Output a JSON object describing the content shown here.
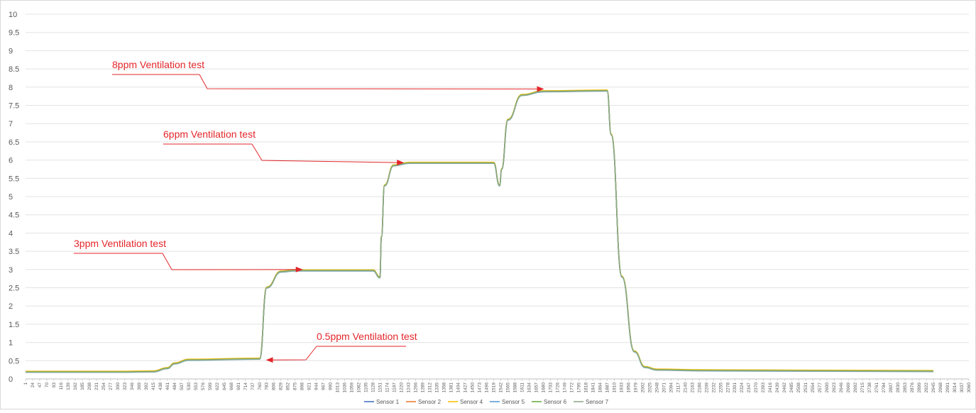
{
  "chart_data": {
    "type": "line",
    "title": "",
    "xlabel": "",
    "ylabel": "",
    "ylim": [
      0,
      10
    ],
    "xlim": [
      1,
      3060
    ],
    "y_ticks": [
      "0",
      "0.5",
      "1",
      "1.5",
      "2",
      "2.5",
      "3",
      "3.5",
      "4",
      "4.5",
      "5",
      "5.5",
      "6",
      "6.5",
      "7",
      "7.5",
      "8",
      "8.5",
      "9",
      "9.5",
      "10"
    ],
    "x_ticks": [
      "1",
      "24",
      "47",
      "70",
      "93",
      "116",
      "139",
      "162",
      "185",
      "208",
      "231",
      "254",
      "277",
      "300",
      "323",
      "346",
      "369",
      "392",
      "415",
      "438",
      "461",
      "484",
      "507",
      "530",
      "553",
      "576",
      "599",
      "622",
      "645",
      "668",
      "691",
      "714",
      "737",
      "760",
      "783",
      "806",
      "829",
      "852",
      "875",
      "898",
      "921",
      "944",
      "967",
      "990",
      "1013",
      "1036",
      "1059",
      "1082",
      "1105",
      "1128",
      "1151",
      "1174",
      "1197",
      "1220",
      "1243",
      "1266",
      "1289",
      "1312",
      "1335",
      "1358",
      "1381",
      "1404",
      "1427",
      "1450",
      "1473",
      "1496",
      "1519",
      "1542",
      "1565",
      "1588",
      "1611",
      "1634",
      "1657",
      "1680",
      "1703",
      "1726",
      "1749",
      "1772",
      "1795",
      "1818",
      "1841",
      "1864",
      "1887",
      "1910",
      "1933",
      "1956",
      "1979",
      "2002",
      "2025",
      "2048",
      "2071",
      "2094",
      "2117",
      "2140",
      "2163",
      "2186",
      "2209",
      "2232",
      "2255",
      "2278",
      "2301",
      "2324",
      "2347",
      "2370",
      "2393",
      "2416",
      "2439",
      "2462",
      "2485",
      "2508",
      "2531",
      "2554",
      "2577",
      "2600",
      "2623",
      "2646",
      "2669",
      "2692",
      "2715",
      "2738",
      "2761",
      "2784",
      "2807",
      "2830",
      "2853",
      "2876",
      "2899",
      "2922",
      "2945",
      "2968",
      "2991",
      "3014",
      "3037",
      "3060"
    ],
    "x": [
      1,
      300,
      415,
      461,
      484,
      530,
      760,
      783,
      830,
      875,
      1128,
      1150,
      1155,
      1165,
      1195,
      1245,
      1519,
      1538,
      1545,
      1565,
      1611,
      1680,
      1887,
      1900,
      1935,
      1975,
      2010,
      2048,
      2200,
      2945
    ],
    "series": [
      {
        "name": "Sensor 1",
        "color": "#4472c4",
        "values": [
          0.19,
          0.19,
          0.2,
          0.29,
          0.42,
          0.52,
          0.55,
          2.5,
          2.94,
          2.97,
          2.97,
          2.78,
          3.9,
          5.3,
          5.85,
          5.92,
          5.92,
          5.3,
          5.75,
          7.1,
          7.78,
          7.88,
          7.9,
          6.7,
          2.8,
          0.75,
          0.32,
          0.25,
          0.23,
          0.21
        ],
        "offset": 0.0
      },
      {
        "name": "Sensor 2",
        "color": "#ed7d31",
        "values": [
          0.19,
          0.19,
          0.2,
          0.29,
          0.42,
          0.52,
          0.55,
          2.5,
          2.94,
          2.97,
          2.97,
          2.78,
          3.9,
          5.3,
          5.85,
          5.92,
          5.92,
          5.3,
          5.75,
          7.1,
          7.78,
          7.88,
          7.9,
          6.7,
          2.8,
          0.75,
          0.32,
          0.25,
          0.23,
          0.21
        ],
        "offset": 0.015
      },
      {
        "name": "Sensor 4",
        "color": "#ffc000",
        "values": [
          0.19,
          0.19,
          0.2,
          0.29,
          0.42,
          0.52,
          0.55,
          2.5,
          2.94,
          2.97,
          2.97,
          2.78,
          3.9,
          5.3,
          5.85,
          5.92,
          5.92,
          5.3,
          5.75,
          7.1,
          7.78,
          7.88,
          7.9,
          6.7,
          2.8,
          0.75,
          0.32,
          0.25,
          0.23,
          0.21
        ],
        "offset": 0.02
      },
      {
        "name": "Sensor 5",
        "color": "#5b9bd5",
        "values": [
          0.19,
          0.19,
          0.2,
          0.29,
          0.42,
          0.52,
          0.55,
          2.5,
          2.94,
          2.97,
          2.97,
          2.78,
          3.9,
          5.3,
          5.85,
          5.92,
          5.92,
          5.3,
          5.75,
          7.1,
          7.78,
          7.88,
          7.9,
          6.7,
          2.8,
          0.75,
          0.32,
          0.25,
          0.23,
          0.21
        ],
        "offset": -0.01
      },
      {
        "name": "Sensor 6",
        "color": "#70ad47",
        "values": [
          0.19,
          0.19,
          0.2,
          0.29,
          0.42,
          0.52,
          0.55,
          2.5,
          2.94,
          2.97,
          2.97,
          2.78,
          3.9,
          5.3,
          5.85,
          5.92,
          5.92,
          5.3,
          5.75,
          7.1,
          7.78,
          7.88,
          7.9,
          6.7,
          2.8,
          0.75,
          0.32,
          0.25,
          0.23,
          0.21
        ],
        "offset": 0.005
      },
      {
        "name": "Sensor 7",
        "color": "#8faa8c",
        "values": [
          0.19,
          0.19,
          0.2,
          0.29,
          0.42,
          0.52,
          0.55,
          2.5,
          2.94,
          2.97,
          2.97,
          2.78,
          3.9,
          5.3,
          5.85,
          5.92,
          5.92,
          5.3,
          5.75,
          7.1,
          7.78,
          7.88,
          7.9,
          6.7,
          2.8,
          0.75,
          0.32,
          0.25,
          0.23,
          0.21
        ],
        "offset": -0.005
      }
    ],
    "annotations": [
      {
        "text": "8ppm Ventilation test",
        "color": "#e3262a",
        "arrow_to": {
          "x": 1680,
          "y": 7.95
        }
      },
      {
        "text": "6ppm Ventilation test",
        "color": "#e3262a",
        "arrow_to": {
          "x": 1226,
          "y": 5.93
        }
      },
      {
        "text": "3ppm Ventilation test",
        "color": "#e3262a",
        "arrow_to": {
          "x": 898,
          "y": 3.0
        }
      },
      {
        "text": "0.5ppm Ventilation test",
        "color": "#e3262a",
        "arrow_to": {
          "x": 783,
          "y": 0.52
        }
      }
    ],
    "grid": true,
    "legend_position": "bottom"
  }
}
